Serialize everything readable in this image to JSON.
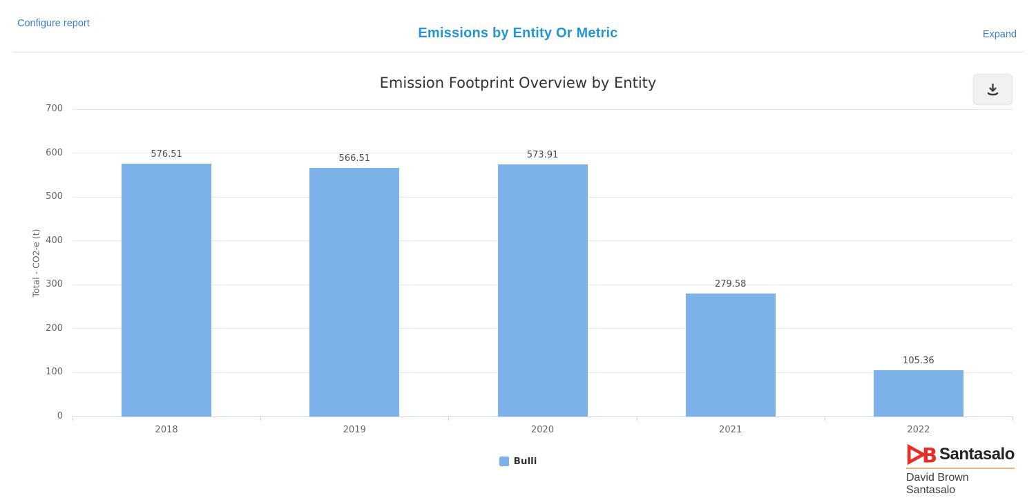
{
  "header": {
    "configure_label": "Configure report",
    "title": "Emissions by Entity Or Metric",
    "expand_label": "Expand"
  },
  "toolbar": {
    "download_icon": "download-chart"
  },
  "chart_data": {
    "type": "bar",
    "title": "Emission Footprint Overview by Entity",
    "categories": [
      "2018",
      "2019",
      "2020",
      "2021",
      "2022"
    ],
    "series": [
      {
        "name": "Bulli",
        "values": [
          576.51,
          566.51,
          573.91,
          279.58,
          105.36
        ],
        "color": "#7cb1ea"
      }
    ],
    "data_labels": [
      "576.51",
      "566.51",
      "573.91",
      "279.58",
      "105.36"
    ],
    "xlabel": "",
    "ylabel": "Total - CO2-e (t)",
    "ylim": [
      0,
      700
    ],
    "yticks": [
      0,
      100,
      200,
      300,
      400,
      500,
      600,
      700
    ],
    "grid": true,
    "legend_position": "bottom-center"
  },
  "legend": {
    "items": [
      {
        "label": "Bulli",
        "color": "#7cb1ea"
      }
    ]
  },
  "footer_logo": {
    "brand": "Santasalo",
    "subtitle": "David Brown Santasalo"
  },
  "colors": {
    "bar": "#7cb1ea",
    "link_blue": "#3b7dcd",
    "panel_title_blue": "#2596d1",
    "axis_line": "#ccd6eb",
    "gridline": "#e6e6e6",
    "logo_red": "#e63027",
    "logo_rule_orange": "#f4b183"
  }
}
